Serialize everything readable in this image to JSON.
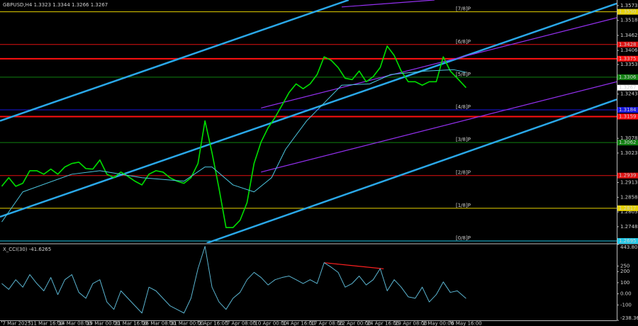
{
  "chart_data": [
    {
      "type": "line",
      "title": "GBPUSD,H4 1.3323 1.3344 1.3266 1.3267",
      "xlim": [
        -1,
        351
      ],
      "ylim": [
        1.2687,
        1.3594
      ],
      "yticks": [
        1.3573,
        1.3518,
        1.3462,
        1.3406,
        1.3353,
        1.3243,
        1.3078,
        1.3023,
        1.2913,
        1.2858,
        1.2803,
        1.2748
      ],
      "series": [
        {
          "color": "#00e000",
          "x": [
            0,
            4,
            8,
            12,
            16,
            20,
            24,
            28,
            32,
            36,
            40,
            44,
            48,
            52,
            56,
            60,
            64,
            68,
            72,
            76,
            80,
            84,
            88,
            92,
            96,
            100,
            104,
            108,
            112,
            116,
            120,
            124,
            128,
            132,
            136,
            140,
            144,
            148,
            152,
            156,
            160,
            164,
            168,
            172,
            176,
            180,
            184,
            188,
            192,
            196,
            200,
            204,
            208,
            212,
            216,
            220,
            224,
            228,
            232,
            236,
            240,
            244,
            248,
            252,
            256,
            260,
            265
          ],
          "values": [
            1.2899,
            1.2931,
            1.2899,
            1.291,
            1.2957,
            1.2957,
            1.2944,
            1.2963,
            1.2944,
            1.2971,
            1.2984,
            1.2989,
            1.2965,
            1.2963,
            1.2997,
            1.2944,
            1.2931,
            1.2952,
            1.2936,
            1.2918,
            1.2904,
            1.2944,
            1.2957,
            1.2952,
            1.2931,
            1.2918,
            1.291,
            1.2931,
            1.2984,
            1.3143,
            1.3024,
            1.2891,
            1.2745,
            1.2745,
            1.2772,
            1.2838,
            1.2984,
            1.3064,
            1.3117,
            1.3156,
            1.3202,
            1.3249,
            1.3281,
            1.3263,
            1.3281,
            1.3316,
            1.3382,
            1.3369,
            1.3342,
            1.3302,
            1.3297,
            1.3329,
            1.3289,
            1.3308,
            1.3342,
            1.3422,
            1.3387,
            1.3329,
            1.3289,
            1.3289,
            1.3276,
            1.3289,
            1.3289,
            1.3382,
            1.3329,
            1.3302,
            1.3267
          ]
        },
        {
          "color": "#4cc6e0",
          "x": [
            0,
            12,
            40,
            56,
            80,
            104,
            116,
            120,
            132,
            144,
            154,
            162,
            174,
            186,
            194,
            210,
            222,
            242,
            258,
            265
          ],
          "values": [
            1.2766,
            1.2878,
            1.2944,
            1.2957,
            1.2931,
            1.2918,
            1.2971,
            1.2971,
            1.2904,
            1.2878,
            1.2931,
            1.3037,
            1.3143,
            1.3223,
            1.3276,
            1.3281,
            1.3316,
            1.3329,
            1.3334,
            1.3324
          ]
        }
      ],
      "trend_lines": [
        {
          "color": "#2aa8e8",
          "x": [
            -1,
            198
          ],
          "values": [
            1.3143,
            1.3594
          ]
        },
        {
          "color": "#2aa8e8",
          "x": [
            -1,
            351
          ],
          "values": [
            1.2785,
            1.3581
          ]
        },
        {
          "color": "#2aa8e8",
          "x": [
            117,
            351
          ],
          "values": [
            1.2687,
            1.3223
          ]
        },
        {
          "color": "#9430f0",
          "x": [
            148,
            351
          ],
          "values": [
            1.3191,
            1.3528
          ]
        },
        {
          "color": "#9430f0",
          "x": [
            148,
            351
          ],
          "values": [
            1.2952,
            1.3289
          ]
        },
        {
          "color": "#9430f0",
          "x": [
            194,
            247
          ],
          "values": [
            1.3568,
            1.3594
          ]
        }
      ],
      "levels": [
        {
          "value": 1.355,
          "value_label": "1.3550",
          "color": "#e6d200",
          "label": "[7/8]P"
        },
        {
          "value": 1.3428,
          "color": "#e01010",
          "label": "[6/8]P"
        },
        {
          "value": 1.3375,
          "color": "#ff1010",
          "thick": true
        },
        {
          "value": 1.3306,
          "color": "#108010",
          "label": "[5/8]P"
        },
        {
          "value": 1.3184,
          "color": "#1818e0",
          "label": "[4/8]P"
        },
        {
          "value": 1.3159,
          "color": "#ff1010",
          "thick": true
        },
        {
          "value": 1.3062,
          "color": "#108010",
          "label": "[3/8]P"
        },
        {
          "value": 1.2939,
          "color": "#e01010",
          "label": "[2/8]P"
        },
        {
          "value": 1.2817,
          "color": "#e6d200",
          "label": "[1/8]P"
        },
        {
          "value": 1.2695,
          "color": "#20c8e8",
          "label": "[0/8]P"
        }
      ],
      "price_label": 1.3267
    },
    {
      "type": "line",
      "title": "X_CCI(30) -41.6265",
      "xlim": [
        -1,
        351
      ],
      "ylim": [
        -238.364,
        443.8052
      ],
      "yticks": [
        443.8052,
        250,
        200,
        100,
        {
          "value": 0,
          "label": "0.00"
        },
        -100,
        -238.364
      ],
      "xticks": [
        {
          "value": 0,
          "label": "7 Mar 2025"
        },
        {
          "value": 16,
          "label": "11 Mar 16:00"
        },
        {
          "value": 32,
          "label": "14 Mar 08:00"
        },
        {
          "value": 48,
          "label": "19 Mar 00:00"
        },
        {
          "value": 64,
          "label": "21 Mar 16:00"
        },
        {
          "value": 80,
          "label": "26 Mar 08:00"
        },
        {
          "value": 96,
          "label": "31 Mar 00:00"
        },
        {
          "value": 112,
          "label": "2 Apr 16:00"
        },
        {
          "value": 128,
          "label": "7 Apr 08:00"
        },
        {
          "value": 144,
          "label": "10 Apr 00:00"
        },
        {
          "value": 160,
          "label": "14 Apr 16:00"
        },
        {
          "value": 176,
          "label": "17 Apr 08:00"
        },
        {
          "value": 192,
          "label": "22 Apr 00:00"
        },
        {
          "value": 208,
          "label": "24 Apr 16:00"
        },
        {
          "value": 224,
          "label": "29 Apr 08:00"
        },
        {
          "value": 240,
          "label": "2 May 00:00"
        },
        {
          "value": 256,
          "label": "6 May 16:00"
        }
      ],
      "series": [
        {
          "color": "#5ab4d0",
          "x": [
            0,
            4,
            8,
            12,
            16,
            20,
            24,
            28,
            32,
            36,
            40,
            44,
            48,
            52,
            56,
            60,
            64,
            68,
            72,
            76,
            80,
            84,
            88,
            92,
            96,
            100,
            104,
            108,
            112,
            116,
            120,
            124,
            128,
            132,
            136,
            140,
            144,
            148,
            152,
            156,
            160,
            164,
            168,
            172,
            176,
            180,
            184,
            188,
            192,
            196,
            200,
            204,
            208,
            212,
            216,
            220,
            224,
            228,
            232,
            236,
            240,
            244,
            248,
            252,
            256,
            260,
            265
          ],
          "values": [
            93,
            40,
            127,
            60,
            173,
            93,
            27,
            147,
            -7,
            127,
            173,
            13,
            -40,
            93,
            127,
            -73,
            -140,
            27,
            -40,
            -107,
            -173,
            60,
            27,
            -40,
            -107,
            -140,
            -173,
            -40,
            227,
            427,
            60,
            -73,
            -140,
            -40,
            13,
            127,
            193,
            147,
            80,
            127,
            147,
            160,
            127,
            93,
            127,
            93,
            280,
            240,
            193,
            60,
            93,
            160,
            80,
            127,
            227,
            27,
            127,
            60,
            -27,
            -40,
            60,
            -73,
            -7,
            107,
            13,
            27,
            -41.6265
          ]
        }
      ],
      "trend_lines": [
        {
          "color": "#ff2020",
          "x": [
            184,
            218
          ],
          "values": [
            280,
            225
          ]
        }
      ]
    }
  ]
}
